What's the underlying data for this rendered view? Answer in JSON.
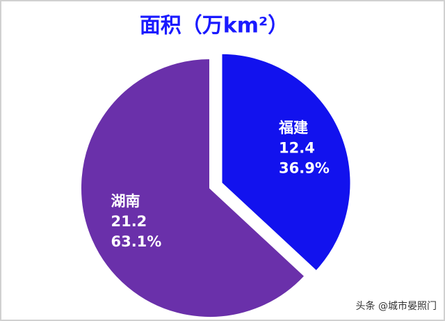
{
  "chart_data": {
    "type": "pie",
    "title": "面积（万km²）",
    "categories": [
      "福建",
      "湖南"
    ],
    "values": [
      12.4,
      21.2
    ],
    "percentages": [
      36.9,
      63.1
    ],
    "percentage_labels": [
      "36.9%",
      "63.1%"
    ],
    "colors": [
      "#1212ee",
      "#6a30aa"
    ]
  },
  "watermark": "头条 @城市晏照门"
}
